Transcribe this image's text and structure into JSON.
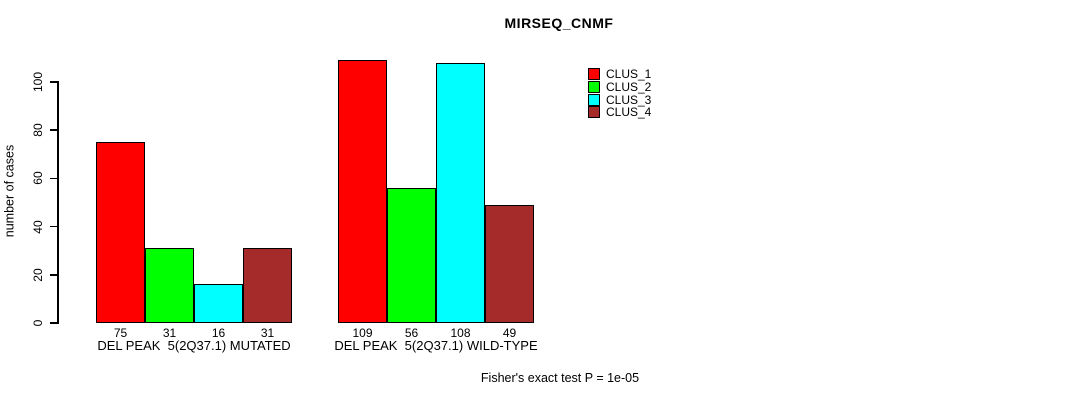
{
  "title": "MIRSEQ_CNMF",
  "footer": "Fisher's exact test P = 1e-05",
  "colors": {
    "clus_1": "#FF0000",
    "clus_2": "#00FF00",
    "clus_3": "#00FFFF",
    "clus_4": "#A52A2A",
    "axis": "#000000",
    "background": "#FFFFFF"
  },
  "chart_data": {
    "type": "bar",
    "title": "MIRSEQ_CNMF",
    "ylabel": "number of cases",
    "xlabel": "",
    "yticks": [
      0,
      20,
      40,
      60,
      80,
      100
    ],
    "ylim": [
      0,
      110
    ],
    "grid": false,
    "legend_position": "top-right-inside",
    "bar_value_labels_shown": true,
    "categories": [
      "DEL PEAK  5(2Q37.1) MUTATED",
      "DEL PEAK  5(2Q37.1) WILD-TYPE"
    ],
    "series": [
      {
        "name": "CLUS_1",
        "color": "#FF0000",
        "values": [
          75,
          109
        ]
      },
      {
        "name": "CLUS_2",
        "color": "#00FF00",
        "values": [
          31,
          56
        ]
      },
      {
        "name": "CLUS_3",
        "color": "#00FFFF",
        "values": [
          16,
          108
        ]
      },
      {
        "name": "CLUS_4",
        "color": "#A52A2A",
        "values": [
          31,
          49
        ]
      }
    ],
    "legend": [
      {
        "label": "CLUS_1",
        "color": "#FF0000"
      },
      {
        "label": "CLUS_2",
        "color": "#00FF00"
      },
      {
        "label": "CLUS_3",
        "color": "#00FFFF"
      },
      {
        "label": "CLUS_4",
        "color": "#A52A2A"
      }
    ],
    "annotation": "Fisher's exact test P = 1e-05"
  }
}
